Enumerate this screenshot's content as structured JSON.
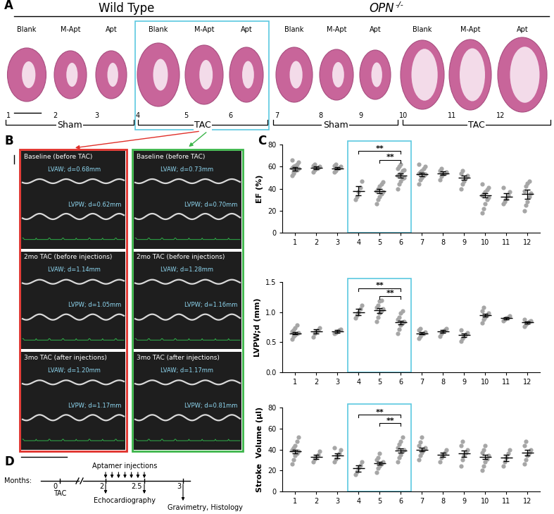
{
  "panel_labels": [
    "A",
    "B",
    "C",
    "D"
  ],
  "panel_A": {
    "genotypes": [
      {
        "text": "Wild Type"
      },
      {
        "text": "OPN",
        "superscript": "-/-"
      }
    ],
    "hearts": [
      {
        "number": "1",
        "treatment": "Blank"
      },
      {
        "number": "2",
        "treatment": "M-Apt"
      },
      {
        "number": "3",
        "treatment": "Apt"
      },
      {
        "number": "4",
        "treatment": "Blank"
      },
      {
        "number": "5",
        "treatment": "M-Apt"
      },
      {
        "number": "6",
        "treatment": "Apt"
      },
      {
        "number": "7",
        "treatment": "Blank"
      },
      {
        "number": "8",
        "treatment": "M-Apt"
      },
      {
        "number": "9",
        "treatment": "Apt"
      },
      {
        "number": "10",
        "treatment": "Blank"
      },
      {
        "number": "11",
        "treatment": "M-Apt"
      },
      {
        "number": "12",
        "treatment": "Apt"
      }
    ],
    "groups": [
      "Sham",
      "TAC",
      "Sham",
      "TAC"
    ]
  },
  "panel_B": {
    "columns": [
      {
        "color": "#e0302a",
        "rows": [
          {
            "label": "Baseline (before TAC)",
            "lvaw": "LVAW; d=0.68mm",
            "lvpw": "LVPW; d=0.62mm"
          },
          {
            "label": "2mo TAC (before injections)",
            "lvaw": "LVAW; d=1.14mm",
            "lvpw": "LVPW; d=1.05mm"
          },
          {
            "label": "3mo TAC (after injections)",
            "lvaw": "LVAW; d=1.20mm",
            "lvpw": "LVPW; d=1.17mm"
          }
        ]
      },
      {
        "color": "#3cb54a",
        "rows": [
          {
            "label": "Baseline (before TAC)",
            "lvaw": "LVAW; d=0.73mm",
            "lvpw": "LVPW; d=0.70mm"
          },
          {
            "label": "2mo TAC (before injections)",
            "lvaw": "LVAW; d=1.28mm",
            "lvpw": "LVPW; d=1.16mm"
          },
          {
            "label": "3mo TAC (after injections)",
            "lvaw": "LVAW; d=1.17mm",
            "lvpw": "LVPW; d=0.81mm"
          }
        ]
      }
    ]
  },
  "panel_D": {
    "axis_label": "Months:",
    "ticks": [
      0,
      2,
      2.5,
      3
    ],
    "injections_label": "Aptamer injections",
    "injections": [
      2,
      2.083,
      2.167,
      2.25,
      2.333,
      2.417,
      2.5
    ],
    "events": [
      {
        "months": [
          0
        ],
        "label": "TAC"
      },
      {
        "months": [
          2,
          2.5
        ],
        "label": "Echocardiography"
      },
      {
        "months": [
          3
        ],
        "label": "Gravimetry, Histology"
      }
    ]
  },
  "chart_data": [
    {
      "type": "scatter",
      "ylabel": "EF (%)",
      "color": "#a6a6a6",
      "categories": [
        "1",
        "2",
        "3",
        "4",
        "5",
        "6",
        "7",
        "8",
        "9",
        "10",
        "11",
        "12"
      ],
      "values": [
        [
          52,
          54,
          56,
          57,
          58,
          59,
          60,
          61,
          62,
          64,
          66,
          55,
          57
        ],
        [
          55,
          57,
          58,
          59,
          60,
          61,
          62
        ],
        [
          55,
          56,
          58,
          59,
          60,
          61,
          62
        ],
        [
          30,
          33,
          37,
          41,
          47
        ],
        [
          26,
          30,
          33,
          35,
          37,
          38,
          40,
          42,
          44,
          46
        ],
        [
          40,
          44,
          47,
          49,
          50,
          52,
          53,
          54,
          56,
          57,
          58,
          60,
          62
        ],
        [
          44,
          48,
          50,
          52,
          53,
          54,
          55,
          56,
          58,
          60,
          62
        ],
        [
          48,
          51,
          53,
          54,
          55,
          56,
          58
        ],
        [
          40,
          44,
          47,
          50,
          52,
          54,
          56
        ],
        [
          18,
          22,
          26,
          30,
          32,
          34,
          35,
          37,
          39,
          41,
          44
        ],
        [
          26,
          28,
          31,
          34,
          37,
          41
        ],
        [
          20,
          25,
          28,
          33,
          36,
          38,
          42,
          45,
          47
        ]
      ],
      "means": [
        58,
        59,
        58.5,
        38,
        38,
        52,
        53,
        54,
        50,
        34,
        33,
        35
      ],
      "errors": [
        1.5,
        1.2,
        1.2,
        4,
        2,
        2,
        1.5,
        1.5,
        2,
        2,
        3,
        4
      ],
      "ylim": [
        0,
        80
      ],
      "yticks": [
        0,
        20,
        40,
        60,
        80
      ],
      "annotations": [
        {
          "text": "**",
          "from": "4",
          "to": "6",
          "y": 74
        },
        {
          "text": "**",
          "from": "5",
          "to": "6",
          "y": 66
        }
      ]
    },
    {
      "type": "scatter",
      "ylabel": "LVPW;d (mm)",
      "color": "#a6a6a6",
      "categories": [
        "1",
        "2",
        "3",
        "4",
        "5",
        "6",
        "7",
        "8",
        "9",
        "10",
        "11",
        "12"
      ],
      "values": [
        [
          0.55,
          0.6,
          0.62,
          0.64,
          0.66,
          0.68,
          0.7,
          0.74,
          0.78
        ],
        [
          0.58,
          0.65,
          0.68,
          0.7,
          0.74
        ],
        [
          0.64,
          0.66,
          0.68,
          0.7,
          0.72
        ],
        [
          0.9,
          0.95,
          1.0,
          1.05,
          1.12
        ],
        [
          0.85,
          0.92,
          0.98,
          1.02,
          1.05,
          1.08,
          1.12,
          1.18,
          1.2
        ],
        [
          0.65,
          0.72,
          0.78,
          0.82,
          0.85,
          0.88,
          0.92,
          0.98,
          1.02
        ],
        [
          0.56,
          0.6,
          0.63,
          0.65,
          0.67,
          0.7,
          0.73
        ],
        [
          0.6,
          0.65,
          0.68,
          0.7,
          0.73
        ],
        [
          0.52,
          0.56,
          0.6,
          0.63,
          0.66,
          0.7
        ],
        [
          0.82,
          0.88,
          0.92,
          0.95,
          0.98,
          1.02,
          1.08
        ],
        [
          0.86,
          0.88,
          0.9,
          0.92,
          0.94
        ],
        [
          0.76,
          0.8,
          0.82,
          0.84,
          0.86,
          0.88
        ]
      ],
      "means": [
        0.65,
        0.68,
        0.68,
        1.0,
        1.03,
        0.83,
        0.65,
        0.68,
        0.62,
        0.95,
        0.9,
        0.83
      ],
      "errors": [
        0.02,
        0.03,
        0.02,
        0.05,
        0.04,
        0.03,
        0.02,
        0.02,
        0.03,
        0.02,
        0.02,
        0.02
      ],
      "ylim": [
        0,
        1.5
      ],
      "yticks": [
        {
          "value": 0,
          "label": "0.0"
        },
        {
          "value": 0.5,
          "label": "0.5"
        },
        {
          "value": 1.0,
          "label": "1.0"
        },
        {
          "value": 1.5,
          "label": "1.5"
        }
      ],
      "annotations": [
        {
          "text": "**",
          "from": "4",
          "to": "6",
          "y": 1.4
        },
        {
          "text": "**",
          "from": "5",
          "to": "6",
          "y": 1.27
        }
      ]
    },
    {
      "type": "scatter",
      "ylabel": "Stroke  Volume (µl)",
      "color": "#a6a6a6",
      "categories": [
        "1",
        "2",
        "3",
        "4",
        "5",
        "6",
        "7",
        "8",
        "9",
        "10",
        "11",
        "12"
      ],
      "values": [
        [
          26,
          30,
          34,
          36,
          38,
          40,
          42,
          44,
          48,
          52
        ],
        [
          28,
          31,
          33,
          35,
          38
        ],
        [
          28,
          31,
          34,
          36,
          40,
          42
        ],
        [
          16,
          19,
          22,
          25,
          28
        ],
        [
          18,
          22,
          24,
          26,
          28,
          30,
          32,
          36
        ],
        [
          28,
          32,
          35,
          38,
          40,
          42,
          45,
          48,
          52
        ],
        [
          30,
          34,
          37,
          40,
          42,
          44,
          47,
          52
        ],
        [
          28,
          32,
          35,
          37,
          40
        ],
        [
          24,
          30,
          34,
          37,
          40,
          44,
          48
        ],
        [
          20,
          24,
          28,
          31,
          34,
          37,
          40,
          44
        ],
        [
          24,
          28,
          32,
          36,
          40
        ],
        [
          26,
          30,
          34,
          37,
          40,
          44,
          48
        ]
      ],
      "means": [
        38,
        33,
        34,
        22,
        27,
        39,
        40,
        35,
        36,
        33,
        32,
        37
      ],
      "errors": [
        2,
        2,
        2.5,
        3,
        1.5,
        2,
        2,
        2,
        3,
        2,
        3,
        3
      ],
      "ylim": [
        0,
        80
      ],
      "yticks": [
        0,
        20,
        40,
        60,
        80
      ],
      "annotations": [
        {
          "text": "**",
          "from": "4",
          "to": "6",
          "y": 73
        },
        {
          "text": "**",
          "from": "5",
          "to": "6",
          "y": 65
        }
      ]
    }
  ]
}
